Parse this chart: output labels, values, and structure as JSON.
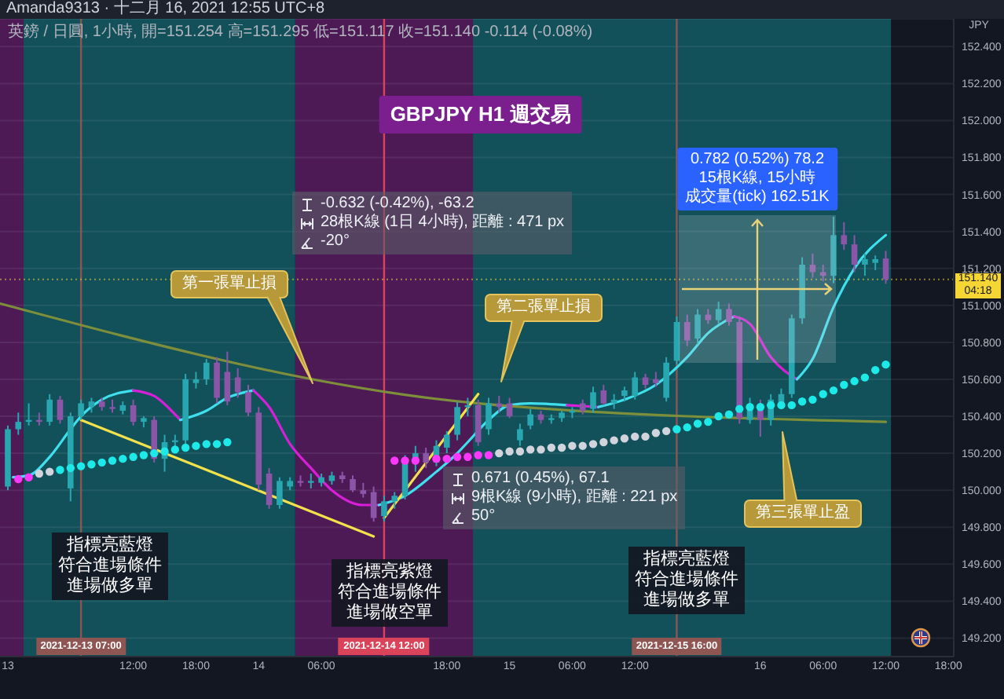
{
  "chart_data": {
    "type": "candlestick",
    "title": "GBPJPY H1 週交易",
    "subtitle": "英鎊 / 日圓, 1小時, 開=151.254 高=151.295 低=151.117 收=151.140 -0.114 (-0.08%)",
    "ylabel": "JPY",
    "x": [
      "2021-12-13T00:00",
      "2021-12-13T01:00",
      "2021-12-13T02:00",
      "2021-12-13T03:00",
      "2021-12-13T04:00",
      "2021-12-13T05:00",
      "2021-12-13T06:00",
      "2021-12-13T07:00",
      "2021-12-13T08:00",
      "2021-12-13T09:00",
      "2021-12-13T10:00",
      "2021-12-13T11:00",
      "2021-12-13T12:00",
      "2021-12-13T13:00",
      "2021-12-13T14:00",
      "2021-12-13T15:00",
      "2021-12-13T16:00",
      "2021-12-13T17:00",
      "2021-12-13T18:00",
      "2021-12-13T19:00",
      "2021-12-13T20:00",
      "2021-12-13T21:00",
      "2021-12-13T22:00",
      "2021-12-13T23:00",
      "2021-12-14T00:00",
      "2021-12-14T01:00",
      "2021-12-14T02:00",
      "2021-12-14T03:00",
      "2021-12-14T04:00",
      "2021-12-14T05:00",
      "2021-12-14T06:00",
      "2021-12-14T07:00",
      "2021-12-14T08:00",
      "2021-12-14T09:00",
      "2021-12-14T10:00",
      "2021-12-14T11:00",
      "2021-12-14T12:00",
      "2021-12-14T13:00",
      "2021-12-14T14:00",
      "2021-12-14T15:00",
      "2021-12-14T16:00",
      "2021-12-14T17:00",
      "2021-12-14T18:00",
      "2021-12-14T19:00",
      "2021-12-14T20:00",
      "2021-12-14T21:00",
      "2021-12-14T22:00",
      "2021-12-14T23:00",
      "2021-12-15T00:00",
      "2021-12-15T01:00",
      "2021-12-15T02:00",
      "2021-12-15T03:00",
      "2021-12-15T04:00",
      "2021-12-15T05:00",
      "2021-12-15T06:00",
      "2021-12-15T07:00",
      "2021-12-15T08:00",
      "2021-12-15T09:00",
      "2021-12-15T10:00",
      "2021-12-15T11:00",
      "2021-12-15T12:00",
      "2021-12-15T13:00",
      "2021-12-15T14:00",
      "2021-12-15T15:00",
      "2021-12-15T16:00",
      "2021-12-15T17:00",
      "2021-12-15T18:00",
      "2021-12-15T19:00",
      "2021-12-15T20:00",
      "2021-12-15T21:00",
      "2021-12-15T22:00",
      "2021-12-15T23:00",
      "2021-12-16T00:00",
      "2021-12-16T01:00",
      "2021-12-16T02:00",
      "2021-12-16T03:00",
      "2021-12-16T04:00",
      "2021-12-16T05:00",
      "2021-12-16T06:00",
      "2021-12-16T07:00",
      "2021-12-16T08:00",
      "2021-12-16T09:00",
      "2021-12-16T10:00",
      "2021-12-16T11:00",
      "2021-12-16T12:00"
    ],
    "ohlc": [
      [
        150.02,
        150.35,
        150.0,
        150.33
      ],
      [
        150.33,
        150.42,
        150.3,
        150.37
      ],
      [
        150.37,
        150.47,
        150.35,
        150.38
      ],
      [
        150.38,
        150.42,
        150.35,
        150.37
      ],
      [
        150.37,
        150.52,
        150.35,
        150.49
      ],
      [
        150.49,
        150.51,
        150.36,
        150.38
      ],
      [
        150.01,
        150.42,
        149.94,
        150.4
      ],
      [
        150.4,
        150.49,
        150.38,
        150.47
      ],
      [
        150.45,
        150.5,
        150.42,
        150.48
      ],
      [
        150.48,
        150.5,
        150.43,
        150.45
      ],
      [
        150.45,
        150.49,
        150.42,
        150.44
      ],
      [
        150.43,
        150.48,
        150.41,
        150.46
      ],
      [
        150.46,
        150.49,
        150.35,
        150.37
      ],
      [
        150.37,
        150.4,
        150.34,
        150.39
      ],
      [
        150.38,
        150.4,
        150.15,
        150.17
      ],
      [
        150.17,
        150.3,
        150.1,
        150.26
      ],
      [
        150.26,
        150.3,
        150.22,
        150.27
      ],
      [
        150.27,
        150.63,
        150.25,
        150.6
      ],
      [
        150.58,
        150.64,
        150.55,
        150.6
      ],
      [
        150.6,
        150.71,
        150.57,
        150.69
      ],
      [
        150.69,
        150.72,
        150.47,
        150.5
      ],
      [
        150.64,
        150.75,
        150.46,
        150.48
      ],
      [
        150.61,
        150.66,
        150.5,
        150.53
      ],
      [
        150.53,
        150.57,
        150.4,
        150.42
      ],
      [
        150.42,
        150.45,
        150.0,
        150.03
      ],
      [
        150.09,
        150.12,
        149.9,
        149.92
      ],
      [
        149.92,
        150.07,
        149.9,
        150.05
      ],
      [
        150.02,
        150.07,
        150.0,
        150.05
      ],
      [
        150.05,
        150.08,
        150.02,
        150.04
      ],
      [
        150.04,
        150.09,
        150.01,
        150.05
      ],
      [
        150.04,
        150.09,
        150.02,
        150.07
      ],
      [
        150.05,
        150.1,
        150.03,
        150.08
      ],
      [
        150.08,
        150.1,
        150.04,
        150.06
      ],
      [
        150.06,
        150.08,
        149.99,
        150.0
      ],
      [
        150.0,
        150.04,
        149.96,
        149.98
      ],
      [
        149.99,
        150.02,
        149.83,
        149.85
      ],
      [
        149.86,
        149.97,
        149.83,
        149.94
      ],
      [
        149.94,
        149.99,
        149.9,
        149.97
      ],
      [
        149.97,
        150.19,
        149.95,
        150.16
      ],
      [
        150.16,
        150.24,
        150.1,
        150.2
      ],
      [
        150.2,
        150.23,
        150.12,
        150.15
      ],
      [
        150.15,
        150.27,
        150.13,
        150.24
      ],
      [
        150.23,
        150.32,
        150.2,
        150.3
      ],
      [
        150.3,
        150.48,
        150.27,
        150.45
      ],
      [
        150.45,
        150.5,
        150.4,
        150.46
      ],
      [
        150.46,
        150.49,
        150.24,
        150.26
      ],
      [
        150.33,
        150.5,
        150.3,
        150.47
      ],
      [
        150.47,
        150.51,
        150.42,
        150.45
      ],
      [
        150.47,
        150.5,
        150.39,
        150.4
      ],
      [
        150.27,
        150.36,
        150.24,
        150.33
      ],
      [
        150.35,
        150.44,
        150.33,
        150.41
      ],
      [
        150.41,
        150.43,
        150.36,
        150.38
      ],
      [
        150.38,
        150.41,
        150.36,
        150.39
      ],
      [
        150.39,
        150.43,
        150.37,
        150.42
      ],
      [
        150.42,
        150.45,
        150.39,
        150.43
      ],
      [
        150.47,
        150.49,
        150.41,
        150.43
      ],
      [
        150.44,
        150.56,
        150.42,
        150.53
      ],
      [
        150.54,
        150.57,
        150.46,
        150.47
      ],
      [
        150.47,
        150.52,
        150.44,
        150.49
      ],
      [
        150.51,
        150.56,
        150.48,
        150.54
      ],
      [
        150.51,
        150.64,
        150.49,
        150.61
      ],
      [
        150.61,
        150.63,
        150.55,
        150.57
      ],
      [
        150.6,
        150.64,
        150.56,
        150.58
      ],
      [
        150.5,
        150.72,
        150.48,
        150.69
      ],
      [
        150.7,
        150.94,
        150.68,
        150.91
      ],
      [
        150.91,
        150.95,
        150.78,
        150.81
      ],
      [
        150.82,
        150.98,
        150.79,
        150.95
      ],
      [
        150.95,
        150.98,
        150.9,
        150.92
      ],
      [
        150.92,
        151.02,
        150.9,
        150.98
      ],
      [
        150.98,
        151.01,
        150.89,
        150.91
      ],
      [
        150.91,
        150.94,
        150.36,
        150.39
      ],
      [
        150.38,
        150.5,
        150.36,
        150.46
      ],
      [
        150.46,
        150.49,
        150.29,
        150.38
      ],
      [
        150.38,
        150.52,
        150.35,
        150.49
      ],
      [
        150.47,
        150.55,
        150.45,
        150.52
      ],
      [
        150.52,
        150.95,
        150.5,
        150.93
      ],
      [
        150.93,
        151.26,
        150.9,
        151.22
      ],
      [
        151.22,
        151.28,
        151.15,
        151.18
      ],
      [
        151.18,
        151.22,
        151.13,
        151.16
      ],
      [
        151.16,
        151.48,
        151.12,
        151.38
      ],
      [
        151.38,
        151.45,
        151.3,
        151.33
      ],
      [
        151.33,
        151.38,
        151.18,
        151.22
      ],
      [
        151.22,
        151.28,
        151.16,
        151.25
      ],
      [
        151.23,
        151.27,
        151.19,
        151.25
      ],
      [
        151.254,
        151.295,
        151.117,
        151.14
      ]
    ],
    "colors": [
      "#29a7b0",
      "#29a7b0",
      "#29a7b0",
      "#8b55a8",
      "#29a7b0",
      "#8b55a8",
      "#29a7b0",
      "#29a7b0",
      "#29a7b0",
      "#8b55a8",
      "#8b55a8",
      "#29a7b0",
      "#8b55a8",
      "#29a7b0",
      "#8b55a8",
      "#29a7b0",
      "#29a7b0",
      "#29a7b0",
      "#29a7b0",
      "#29a7b0",
      "#8b55a8",
      "#8b55a8",
      "#8b55a8",
      "#8b55a8",
      "#8b55a8",
      "#8b55a8",
      "#29a7b0",
      "#29a7b0",
      "#8b55a8",
      "#29a7b0",
      "#29a7b0",
      "#29a7b0",
      "#8b55a8",
      "#8b55a8",
      "#8b55a8",
      "#8b55a8",
      "#29a7b0",
      "#29a7b0",
      "#29a7b0",
      "#29a7b0",
      "#8b55a8",
      "#29a7b0",
      "#29a7b0",
      "#29a7b0",
      "#29a7b0",
      "#8b55a8",
      "#29a7b0",
      "#8b55a8",
      "#8b55a8",
      "#29a7b0",
      "#29a7b0",
      "#8b55a8",
      "#29a7b0",
      "#29a7b0",
      "#29a7b0",
      "#8b55a8",
      "#29a7b0",
      "#8b55a8",
      "#29a7b0",
      "#29a7b0",
      "#29a7b0",
      "#8b55a8",
      "#8b55a8",
      "#29a7b0",
      "#29a7b0",
      "#8b55a8",
      "#29a7b0",
      "#8b55a8",
      "#29a7b0",
      "#8b55a8",
      "#8b55a8",
      "#29a7b0",
      "#8b55a8",
      "#29a7b0",
      "#29a7b0",
      "#29a7b0",
      "#29a7b0",
      "#8b55a8",
      "#8b55a8",
      "#29a7b0",
      "#8b55a8",
      "#8b55a8",
      "#29a7b0",
      "#29a7b0",
      "#8b55a8"
    ],
    "series": [
      {
        "type": "line",
        "color": "#3fe0ee",
        "x": [
          "2021-12-13T00:30",
          "2021-12-13T02:00",
          "2021-12-13T04:00",
          "2021-12-13T06:00",
          "2021-12-13T07:00",
          "2021-12-13T09:00",
          "2021-12-13T12:00"
        ],
        "values": [
          150.07,
          150.08,
          150.18,
          150.33,
          150.4,
          150.49,
          150.54
        ]
      },
      {
        "type": "line",
        "color": "#d81fd8",
        "x": [
          "2021-12-13T12:00",
          "2021-12-13T14:00",
          "2021-12-13T16:00",
          "2021-12-13T16:30"
        ],
        "values": [
          150.54,
          150.51,
          150.41,
          150.38
        ]
      },
      {
        "type": "line",
        "color": "#3fe0ee",
        "x": [
          "2021-12-13T16:30",
          "2021-12-13T19:00",
          "2021-12-13T21:00",
          "2021-12-13T23:30"
        ],
        "values": [
          150.38,
          150.43,
          150.5,
          150.54
        ]
      },
      {
        "type": "line",
        "color": "#d81fd8",
        "x": [
          "2021-12-13T23:30",
          "2021-12-14T01:00",
          "2021-12-14T03:00",
          "2021-12-14T05:00",
          "2021-12-14T07:00",
          "2021-12-14T10:00",
          "2021-12-14T11:30"
        ],
        "values": [
          150.54,
          150.45,
          150.25,
          150.12,
          150.0,
          149.92,
          149.92
        ]
      },
      {
        "type": "line",
        "color": "#3fe0ee",
        "x": [
          "2021-12-14T11:30",
          "2021-12-14T14:00",
          "2021-12-14T17:00",
          "2021-12-14T19:00",
          "2021-12-14T20:00",
          "2021-12-14T22:00",
          "2021-12-15T00:00",
          "2021-12-15T02:00",
          "2021-12-15T05:30"
        ],
        "values": [
          149.92,
          149.97,
          150.1,
          150.2,
          150.26,
          150.38,
          150.46,
          150.47,
          150.46
        ]
      },
      {
        "type": "line",
        "color": "#d81fd8",
        "x": [
          "2021-12-15T05:30",
          "2021-12-15T08:30"
        ],
        "values": [
          150.46,
          150.45
        ]
      },
      {
        "type": "line",
        "color": "#3fe0ee",
        "x": [
          "2021-12-15T08:30",
          "2021-12-15T11:00",
          "2021-12-15T14:00",
          "2021-12-15T17:00",
          "2021-12-15T19:00",
          "2021-12-15T21:30"
        ],
        "values": [
          150.45,
          150.49,
          150.57,
          150.72,
          150.85,
          150.94
        ]
      },
      {
        "type": "line",
        "color": "#d81fd8",
        "x": [
          "2021-12-15T21:30",
          "2021-12-15T23:00",
          "2021-12-16T01:00",
          "2021-12-16T03:30"
        ],
        "values": [
          150.94,
          150.9,
          150.72,
          150.6
        ]
      },
      {
        "type": "line",
        "color": "#3fe0ee",
        "x": [
          "2021-12-16T03:30",
          "2021-12-16T05:00",
          "2021-12-16T07:00",
          "2021-12-16T09:00",
          "2021-12-16T12:00"
        ],
        "values": [
          150.6,
          150.71,
          150.99,
          151.2,
          151.38
        ]
      },
      {
        "type": "line",
        "color": "#7d8f3a",
        "x": [
          "2021-12-12T23:15",
          "2021-12-14T21:00",
          "2021-12-16T12:00"
        ],
        "values": [
          151.01,
          150.47,
          150.37
        ]
      },
      {
        "type": "line",
        "color": "#f2e14b",
        "x": [
          "2021-12-13T07:00",
          "2021-12-14T11:00"
        ],
        "values": [
          150.38,
          149.75
        ]
      },
      {
        "type": "line",
        "color": "#f2e14b",
        "x": [
          "2021-12-14T12:00",
          "2021-12-14T21:00"
        ],
        "values": [
          149.85,
          150.52
        ]
      },
      {
        "type": "scatter",
        "marker": "circle",
        "values": [
          null,
          150.06,
          150.07,
          150.09,
          150.1,
          150.11,
          150.12,
          150.13,
          150.14,
          150.15,
          150.16,
          150.17,
          150.18,
          150.19,
          150.2,
          150.21,
          150.22,
          150.23,
          150.24,
          150.25,
          150.25,
          150.26,
          null,
          null,
          null,
          null,
          null,
          null,
          null,
          null,
          null,
          null,
          null,
          null,
          null,
          null,
          null,
          150.16,
          150.16,
          150.16,
          null,
          150.17,
          150.17,
          150.18,
          150.18,
          150.19,
          150.19,
          150.2,
          150.21,
          150.21,
          150.22,
          150.22,
          150.23,
          150.23,
          150.24,
          150.24,
          150.25,
          150.26,
          150.27,
          150.28,
          150.29,
          150.29,
          150.31,
          150.32,
          150.33,
          150.34,
          150.36,
          150.37,
          150.4,
          150.41,
          150.44,
          150.45,
          150.45,
          150.46,
          150.46,
          150.46,
          150.48,
          150.49,
          150.52,
          150.54,
          150.57,
          150.59,
          150.61,
          150.65,
          150.68
        ],
        "colors": [
          null,
          "#ff38ff",
          "#ff38ff",
          "#d1d4dc",
          "#d1d4dc",
          "#1de9e9",
          "#1de9e9",
          "#1de9e9",
          "#1de9e9",
          "#1de9e9",
          "#1de9e9",
          "#1de9e9",
          "#1de9e9",
          "#1de9e9",
          "#1de9e9",
          "#1de9e9",
          "#1de9e9",
          "#1de9e9",
          "#1de9e9",
          "#1de9e9",
          "#1de9e9",
          "#1de9e9",
          null,
          null,
          null,
          null,
          null,
          null,
          null,
          null,
          null,
          null,
          null,
          null,
          null,
          null,
          null,
          "#ff38ff",
          "#ff38ff",
          "#ff38ff",
          null,
          "#ff38ff",
          "#ff38ff",
          "#ff38ff",
          "#ff38ff",
          "#ff38ff",
          "#ff38ff",
          "#d1d4dc",
          "#d1d4dc",
          "#d1d4dc",
          "#d1d4dc",
          "#d1d4dc",
          "#d1d4dc",
          "#d1d4dc",
          "#d1d4dc",
          "#d1d4dc",
          "#d1d4dc",
          "#d1d4dc",
          "#d1d4dc",
          "#d1d4dc",
          "#d1d4dc",
          "#d1d4dc",
          "#d1d4dc",
          "#d1d4dc",
          "#1de9e9",
          "#1de9e9",
          "#1de9e9",
          "#1de9e9",
          "#1de9e9",
          "#1de9e9",
          "#1de9e9",
          "#1de9e9",
          "#1de9e9",
          "#1de9e9",
          "#1de9e9",
          "#1de9e9",
          "#1de9e9",
          "#1de9e9",
          "#1de9e9",
          "#1de9e9",
          "#1de9e9",
          "#1de9e9",
          "#1de9e9",
          "#1de9e9",
          "#1de9e9"
        ]
      }
    ],
    "xlim": [
      "2021-12-12T23:15",
      "2021-12-16T18:30"
    ],
    "xticks": [
      {
        "value": "2021-12-13T00:00",
        "label": "13"
      },
      {
        "value": "2021-12-13T12:00",
        "label": "12:00"
      },
      {
        "value": "2021-12-13T18:00",
        "label": "18:00"
      },
      {
        "value": "2021-12-14T00:00",
        "label": "14"
      },
      {
        "value": "2021-12-14T06:00",
        "label": "06:00"
      },
      {
        "value": "2021-12-14T18:00",
        "label": "18:00"
      },
      {
        "value": "2021-12-15T00:00",
        "label": "15"
      },
      {
        "value": "2021-12-15T06:00",
        "label": "06:00"
      },
      {
        "value": "2021-12-15T12:00",
        "label": "12:00"
      },
      {
        "value": "2021-12-16T00:00",
        "label": "16"
      },
      {
        "value": "2021-12-16T06:00",
        "label": "06:00"
      },
      {
        "value": "2021-12-16T12:00",
        "label": "12:00"
      },
      {
        "value": "2021-12-16T18:00",
        "label": "18:00"
      }
    ],
    "ylim": [
      149.1,
      152.55
    ],
    "yticks": [
      {
        "value": 149.2,
        "label": "149.200"
      },
      {
        "value": 149.4,
        "label": "149.400"
      },
      {
        "value": 149.6,
        "label": "149.600"
      },
      {
        "value": 149.8,
        "label": "149.800"
      },
      {
        "value": 150,
        "label": "150.000"
      },
      {
        "value": 150.2,
        "label": "150.200"
      },
      {
        "value": 150.4,
        "label": "150.400"
      },
      {
        "value": 150.6,
        "label": "150.600"
      },
      {
        "value": 150.8,
        "label": "150.800"
      },
      {
        "value": 151,
        "label": "151.000"
      },
      {
        "value": 151.2,
        "label": "151.200"
      },
      {
        "value": 151.4,
        "label": "151.400"
      },
      {
        "value": 151.6,
        "label": "151.600"
      },
      {
        "value": 151.8,
        "label": "151.800"
      },
      {
        "value": 152,
        "label": "152.000"
      },
      {
        "value": 152.2,
        "label": "152.200"
      },
      {
        "value": 152.4,
        "label": "152.400"
      }
    ],
    "grid": "y",
    "ref_lines": [
      {
        "axis": "x",
        "value": "2021-12-13T07:00",
        "label": "2021-12-13 07:00",
        "color": "#8f5552"
      },
      {
        "axis": "x",
        "value": "2021-12-14T12:00",
        "label": "2021-12-14 12:00",
        "color": "#d9445a"
      },
      {
        "axis": "x",
        "value": "2021-12-15T16:00",
        "label": "2021-12-15 16:00",
        "color": "#8f5552"
      },
      {
        "axis": "y",
        "value": 151.14,
        "label": "151.140\n04:18",
        "color": "#f5d634",
        "line_style": "dotted"
      }
    ],
    "bands": [
      {
        "axis": "x",
        "from": "2021-12-12T23:15",
        "to": "2021-12-13T01:30",
        "color": "#4d1a56"
      },
      {
        "axis": "x",
        "from": "2021-12-13T01:30",
        "to": "2021-12-14T03:30",
        "color": "#12505a"
      },
      {
        "axis": "x",
        "from": "2021-12-14T03:30",
        "to": "2021-12-14T20:30",
        "color": "#4d1a56"
      },
      {
        "axis": "x",
        "from": "2021-12-14T20:30",
        "to": "2021-12-16T12:30",
        "color": "#12505a"
      }
    ],
    "annotations": [
      "Amanda9313 · 十二月 16, 2021 12:55 UTC+8",
      "第一張單止損",
      "第二張單止損",
      "第三張單止盈",
      "指標亮藍燈符合進場條件進場做多單",
      "指標亮紫燈符合進場條件進場做空單",
      "指標亮藍燈符合進場條件進場做多單",
      "-0.632 (-0.42%), -63.2\n28根K線 (1日 4小時), 距離 : 471 px\n-20°",
      "0.671 (0.45%), 67.1\n9根K線 (9小時), 距離 : 221 px\n50°",
      "0.782 (0.52%) 78.2 15根K線, 15小時成交量(tick) 162.51K"
    ]
  }
}
